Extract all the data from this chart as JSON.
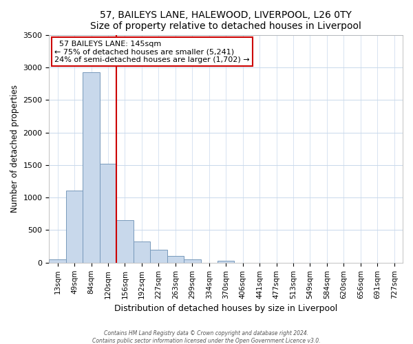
{
  "title": "57, BAILEYS LANE, HALEWOOD, LIVERPOOL, L26 0TY",
  "subtitle": "Size of property relative to detached houses in Liverpool",
  "xlabel": "Distribution of detached houses by size in Liverpool",
  "ylabel": "Number of detached properties",
  "bin_labels": [
    "13sqm",
    "49sqm",
    "84sqm",
    "120sqm",
    "156sqm",
    "192sqm",
    "227sqm",
    "263sqm",
    "299sqm",
    "334sqm",
    "370sqm",
    "406sqm",
    "441sqm",
    "477sqm",
    "513sqm",
    "549sqm",
    "584sqm",
    "620sqm",
    "656sqm",
    "691sqm",
    "727sqm"
  ],
  "bar_heights": [
    55,
    1110,
    2920,
    1520,
    650,
    330,
    200,
    100,
    55,
    0,
    30,
    0,
    0,
    0,
    0,
    0,
    0,
    0,
    0,
    0,
    0
  ],
  "bar_color": "#c8d8eb",
  "bar_edge_color": "#7799bb",
  "vline_color": "#cc0000",
  "ylim": [
    0,
    3500
  ],
  "yticks": [
    0,
    500,
    1000,
    1500,
    2000,
    2500,
    3000,
    3500
  ],
  "annotation_title": "57 BAILEYS LANE: 145sqm",
  "annotation_line1": "← 75% of detached houses are smaller (5,241)",
  "annotation_line2": "24% of semi-detached houses are larger (1,702) →",
  "annotation_box_color": "#ffffff",
  "annotation_box_edge_color": "#cc0000",
  "footer1": "Contains HM Land Registry data © Crown copyright and database right 2024.",
  "footer2": "Contains public sector information licensed under the Open Government Licence v3.0.",
  "background_color": "#ffffff",
  "grid_color": "#c8d8eb"
}
